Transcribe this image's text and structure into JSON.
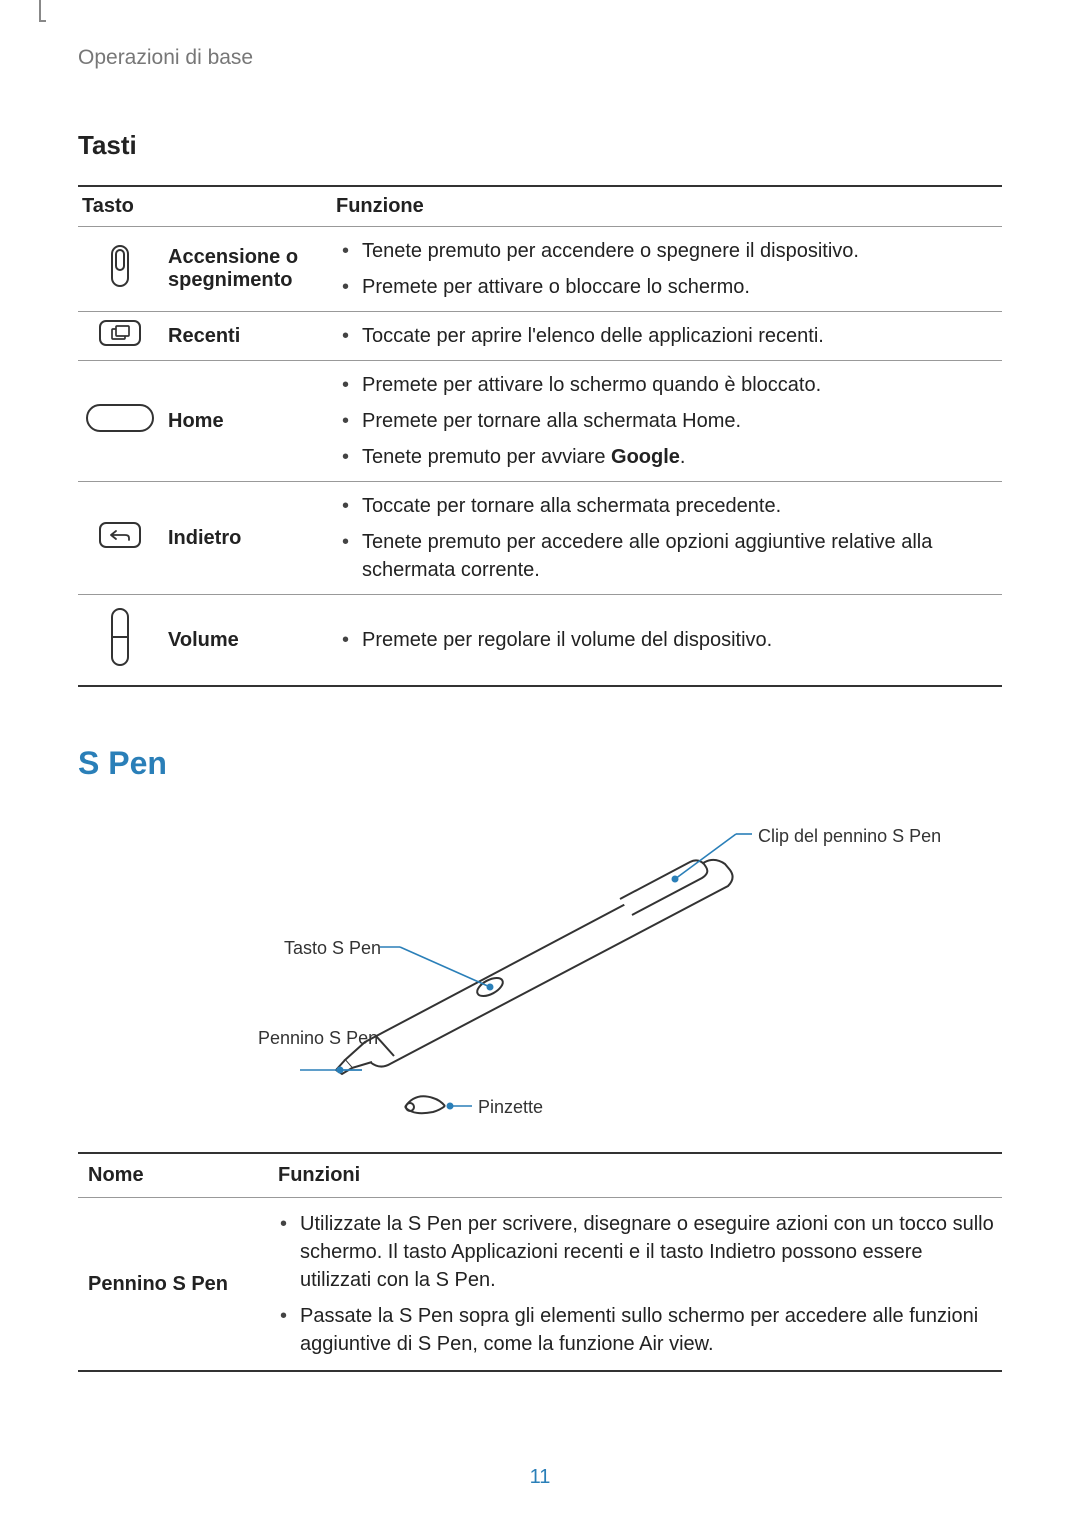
{
  "section_header": "Operazioni di base",
  "h3_tasti": "Tasti",
  "keys_table": {
    "headers": {
      "tasto": "Tasto",
      "funzione": "Funzione"
    },
    "rows": [
      {
        "icon": "power",
        "label": "Accensione o spegnimento",
        "funcs": [
          "Tenete premuto per accendere o spegnere il dispositivo.",
          "Premete per attivare o bloccare lo schermo."
        ]
      },
      {
        "icon": "recent",
        "label": "Recenti",
        "funcs": [
          "Toccate per aprire l'elenco delle applicazioni recenti."
        ]
      },
      {
        "icon": "home",
        "label": "Home",
        "funcs": [
          "Premete per attivare lo schermo quando è bloccato.",
          "Premete per tornare alla schermata Home.",
          "Tenete premuto per avviare <b>Google</b>."
        ]
      },
      {
        "icon": "back",
        "label": "Indietro",
        "funcs": [
          "Toccate per tornare alla schermata precedente.",
          "Tenete premuto per accedere alle opzioni aggiuntive relative alla schermata corrente."
        ]
      },
      {
        "icon": "volume",
        "label": "Volume",
        "funcs": [
          "Premete per regolare il volume del dispositivo."
        ]
      }
    ]
  },
  "h2_spen": "S Pen",
  "spen_diagram": {
    "labels": {
      "clip": "Clip del pennino S Pen",
      "button": "Tasto S Pen",
      "nib": "Pennino S Pen",
      "tweezer": "Pinzette"
    },
    "line_color": "#2a7fb8",
    "dot_color": "#2a7fb8",
    "stroke_color": "#333333"
  },
  "spen_table": {
    "headers": {
      "nome": "Nome",
      "funzioni": "Funzioni"
    },
    "rows": [
      {
        "label": "Pennino S Pen",
        "funcs": [
          "Utilizzate la S Pen per scrivere, disegnare o eseguire azioni con un tocco sullo schermo. Il tasto Applicazioni recenti e il tasto Indietro possono essere utilizzati con la S Pen.",
          "Passate la S Pen sopra gli elementi sullo schermo per accedere alle funzioni aggiuntive di S Pen, come la funzione Air view."
        ]
      }
    ]
  },
  "page_number": "11",
  "colors": {
    "heading_blue": "#2a7fb8",
    "text": "#222222",
    "border_dark": "#333333",
    "border_light": "#999999"
  }
}
